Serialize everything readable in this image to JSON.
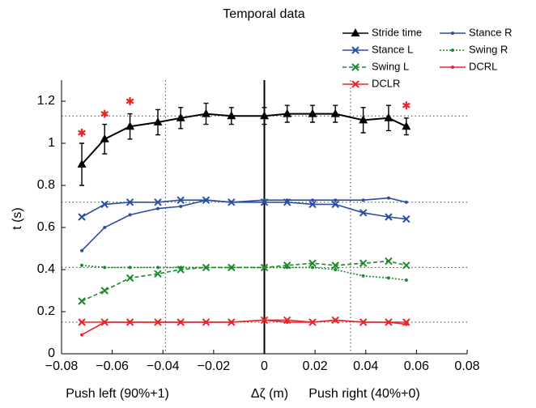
{
  "chart_data": {
    "type": "line",
    "title": "Temporal data",
    "xlabel": "Δζ (m)",
    "x_label_left": "Push left (90%+1)",
    "x_label_right": "Push right (40%+0)",
    "ylabel": "t (s)",
    "x": [
      -0.072,
      -0.063,
      -0.053,
      -0.042,
      -0.033,
      -0.023,
      -0.013,
      0,
      0.009,
      0.019,
      0.028,
      0.039,
      0.049,
      0.056
    ],
    "series": [
      {
        "name": "Stride time",
        "color": "#000000",
        "marker": "triangle",
        "dash": "solid",
        "values": [
          0.9,
          1.02,
          1.08,
          1.1,
          1.12,
          1.14,
          1.13,
          1.13,
          1.14,
          1.14,
          1.14,
          1.11,
          1.12,
          1.08
        ],
        "errors": [
          0.1,
          0.07,
          0.06,
          0.06,
          0.05,
          0.05,
          0.04,
          0.04,
          0.04,
          0.04,
          0.04,
          0.06,
          0.06,
          0.04
        ]
      },
      {
        "name": "Stance R",
        "color": "#2b4ea2",
        "marker": "dot",
        "dash": "solid",
        "values": [
          0.49,
          0.6,
          0.66,
          0.69,
          0.7,
          0.73,
          0.72,
          0.73,
          0.73,
          0.73,
          0.73,
          0.73,
          0.74,
          0.72
        ]
      },
      {
        "name": "Stance L",
        "color": "#2b4ea2",
        "marker": "x",
        "dash": "solid",
        "values": [
          0.65,
          0.71,
          0.72,
          0.72,
          0.73,
          0.73,
          0.72,
          0.72,
          0.72,
          0.71,
          0.71,
          0.67,
          0.65,
          0.64
        ]
      },
      {
        "name": "Swing R",
        "color": "#1b8a2a",
        "marker": "dot",
        "dash": "dotted",
        "values": [
          0.42,
          0.41,
          0.41,
          0.41,
          0.41,
          0.41,
          0.41,
          0.41,
          0.41,
          0.41,
          0.4,
          0.37,
          0.36,
          0.35
        ]
      },
      {
        "name": "Swing L",
        "color": "#1b8a2a",
        "marker": "x",
        "dash": "dashed",
        "values": [
          0.25,
          0.3,
          0.36,
          0.38,
          0.4,
          0.41,
          0.41,
          0.41,
          0.42,
          0.43,
          0.42,
          0.43,
          0.44,
          0.42
        ]
      },
      {
        "name": "DCRL",
        "color": "#e8262a",
        "marker": "dot",
        "dash": "solid",
        "values": [
          0.09,
          0.15,
          0.15,
          0.15,
          0.15,
          0.15,
          0.15,
          0.16,
          0.15,
          0.15,
          0.16,
          0.15,
          0.15,
          0.14
        ]
      },
      {
        "name": "DCLR",
        "color": "#e8262a",
        "marker": "x",
        "dash": "solid",
        "values": [
          0.15,
          0.15,
          0.15,
          0.15,
          0.15,
          0.15,
          0.15,
          0.16,
          0.16,
          0.15,
          0.16,
          0.15,
          0.15,
          0.15
        ]
      }
    ],
    "significance": {
      "color": "#e8262a",
      "x": [
        -0.072,
        -0.063,
        -0.053,
        0.056
      ],
      "values": [
        1.05,
        1.14,
        1.2,
        1.18
      ]
    },
    "ref_y": [
      1.13,
      0.72,
      0.41,
      0.15
    ],
    "ref_x_dotted": [
      -0.039,
      0.034
    ],
    "ref_x_solid": [
      0
    ],
    "xlim": [
      -0.08,
      0.08
    ],
    "xticks": [
      {
        "value": -0.08,
        "label": "−0.08"
      },
      {
        "value": -0.06,
        "label": "−0.06"
      },
      {
        "value": -0.04,
        "label": "−0.04"
      },
      {
        "value": -0.02,
        "label": "−0.02"
      },
      0,
      0.02,
      0.04,
      0.06,
      0.08
    ],
    "ylim": [
      0,
      1.3
    ],
    "yticks": [
      0,
      0.2,
      0.4,
      0.6,
      0.8,
      1,
      1.2
    ]
  }
}
